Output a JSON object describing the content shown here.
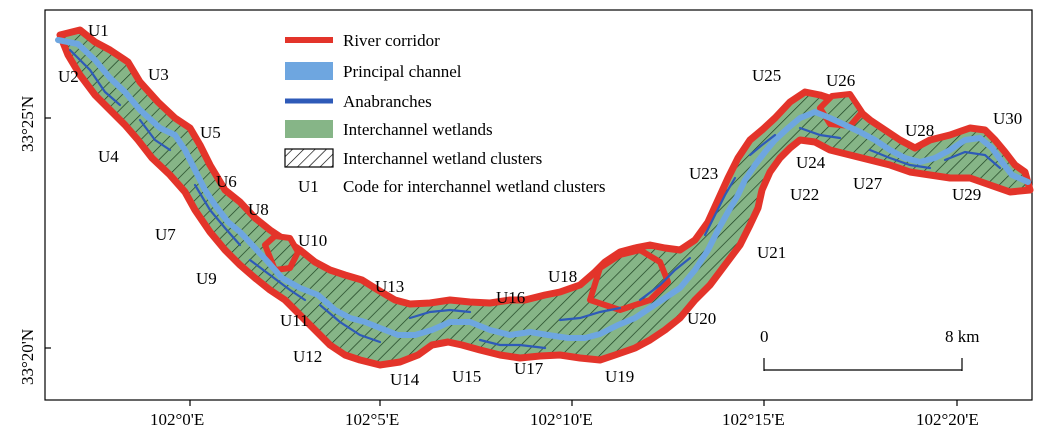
{
  "colors": {
    "corridor": "#e3342a",
    "principal_channel": "#6ea6e0",
    "anabranch": "#2e5ab8",
    "wetland": "#86b587",
    "frame": "#000000"
  },
  "legend": {
    "items": [
      {
        "key": "river-corridor",
        "label": "River corridor",
        "icon": "red-line-swatch"
      },
      {
        "key": "principal-channel",
        "label": "Principal channel",
        "icon": "light-blue-band-swatch"
      },
      {
        "key": "anabranches",
        "label": "Anabranches",
        "icon": "dark-blue-line-swatch"
      },
      {
        "key": "interchannel-wetlands",
        "label": "Interchannel wetlands",
        "icon": "green-fill-swatch"
      },
      {
        "key": "wetland-clusters",
        "label": "Interchannel wetland clusters",
        "icon": "hatched-box-swatch"
      },
      {
        "key": "cluster-code",
        "label": "Code for interchannel wetland clusters",
        "code_example": "U1"
      }
    ]
  },
  "axes": {
    "x_ticks": [
      "102°0'E",
      "102°5'E",
      "102°10'E",
      "102°15'E",
      "102°20'E"
    ],
    "y_ticks": [
      "33°25'N",
      "33°20'N"
    ]
  },
  "scale_bar": {
    "start_label": "0",
    "end_label": "8 km"
  },
  "cluster_labels": [
    "U1",
    "U2",
    "U3",
    "U4",
    "U5",
    "U6",
    "U7",
    "U8",
    "U9",
    "U10",
    "U11",
    "U12",
    "U13",
    "U14",
    "U15",
    "U16",
    "U17",
    "U18",
    "U19",
    "U20",
    "U21",
    "U22",
    "U23",
    "U24",
    "U25",
    "U26",
    "U27",
    "U28",
    "U29",
    "U30"
  ]
}
